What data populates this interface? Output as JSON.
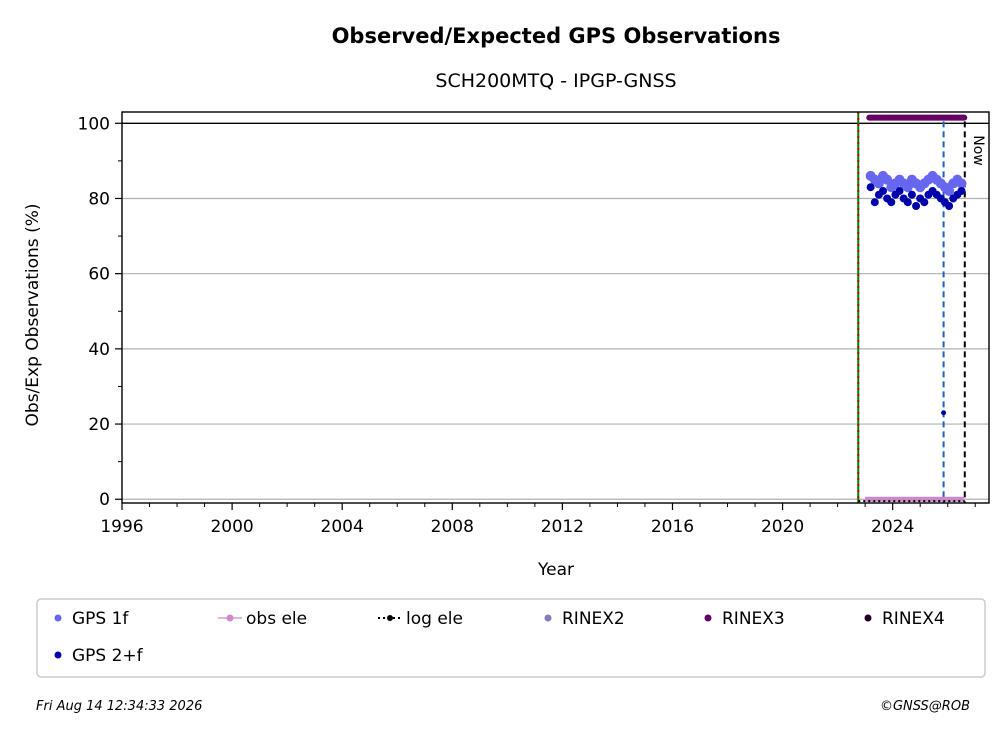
{
  "chart_data": {
    "type": "scatter",
    "title": "Observed/Expected GPS Observations",
    "subtitle": "SCH200MTQ - IPGP-GNSS",
    "xlabel": "Year",
    "ylabel": "Obs/Exp Observations (%)",
    "xlim": [
      1996,
      2027.5
    ],
    "ylim": [
      -1,
      103
    ],
    "xticks": [
      1996,
      2000,
      2004,
      2008,
      2012,
      2016,
      2020,
      2024
    ],
    "yticks": [
      0,
      20,
      40,
      60,
      80,
      100
    ],
    "grid": "horizontal",
    "legend_position": "bottom",
    "colors": {
      "gps_1f": "#6666ee",
      "gps_2f": "#0000aa",
      "obs_ele": "#cc88cc",
      "log_ele": "#000000",
      "rinex2": "#8877bb",
      "rinex3": "#660066",
      "rinex4": "#220022",
      "event_green": "#008000",
      "event_red": "#cc0000",
      "event_blue": "#1f5fbf",
      "now": "#000000"
    },
    "vertical_lines": [
      {
        "x": 2022.75,
        "style": "green-red-dashed"
      },
      {
        "x": 2025.85,
        "style": "blue-dashed"
      },
      {
        "x": 2026.62,
        "style": "black-dashed",
        "label": "Now"
      }
    ],
    "series": [
      {
        "name": "GPS 1f",
        "x": [
          2023.2,
          2023.35,
          2023.5,
          2023.65,
          2023.8,
          2023.95,
          2024.1,
          2024.25,
          2024.4,
          2024.55,
          2024.7,
          2024.85,
          2025.0,
          2025.15,
          2025.3,
          2025.45,
          2025.6,
          2025.75,
          2025.9,
          2026.05,
          2026.2,
          2026.35,
          2026.5
        ],
        "y": [
          86,
          85,
          84,
          86,
          85,
          83,
          84,
          85,
          84,
          83,
          85,
          84,
          83,
          84,
          85,
          86,
          85,
          84,
          83,
          82,
          84,
          85,
          84
        ]
      },
      {
        "name": "GPS 2+f",
        "x": [
          2023.2,
          2023.35,
          2023.5,
          2023.65,
          2023.8,
          2023.95,
          2024.1,
          2024.25,
          2024.4,
          2024.55,
          2024.7,
          2024.85,
          2025.0,
          2025.15,
          2025.3,
          2025.45,
          2025.6,
          2025.75,
          2025.85,
          2025.9,
          2026.05,
          2026.2,
          2026.35,
          2026.5
        ],
        "y": [
          83,
          79,
          81,
          82,
          80,
          79,
          81,
          82,
          80,
          79,
          81,
          78,
          80,
          79,
          81,
          82,
          81,
          80,
          23,
          79,
          78,
          80,
          81,
          82
        ]
      },
      {
        "name": "obs ele",
        "x": [
          2023.0,
          2026.6
        ],
        "y": [
          0,
          0
        ]
      },
      {
        "name": "log ele",
        "x": [
          2022.75,
          2026.62
        ],
        "y": [
          -0.5,
          -0.5
        ]
      },
      {
        "name": "RINEX3",
        "x": [
          2023.15,
          2026.6
        ],
        "y": [
          101.5,
          101.5
        ]
      }
    ],
    "legend": [
      "GPS 1f",
      "obs ele",
      "log ele",
      "RINEX2",
      "RINEX3",
      "RINEX4",
      "GPS 2+f"
    ]
  },
  "footer": {
    "timestamp": "Fri Aug 14 12:34:33 2026",
    "credit": "©GNSS@ROB"
  }
}
